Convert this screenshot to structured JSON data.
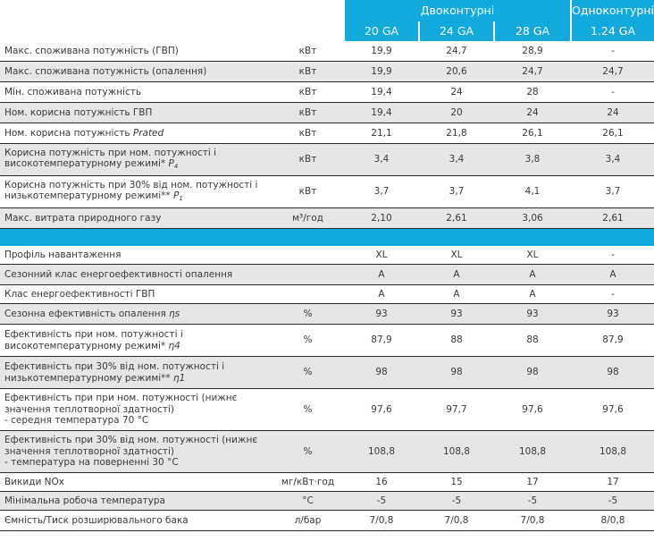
{
  "header": {
    "group_dual": "Двоконтурні",
    "group_single": "Одноконтурні",
    "models": [
      "20 GA",
      "24 GA",
      "28 GA",
      "1.24 GA"
    ]
  },
  "rows_top": [
    {
      "label": "Макс. споживана потужність (ГВП)",
      "unit": "кВт",
      "values": [
        "19,9",
        "24,7",
        "28,9",
        "-"
      ]
    },
    {
      "label": "Макс. споживана потужність (опалення)",
      "unit": "кВт",
      "values": [
        "19,9",
        "20,6",
        "24,7",
        "24,7"
      ]
    },
    {
      "label": "Мін. споживана потужність",
      "unit": "кВт",
      "values": [
        "19,4",
        "24",
        "28",
        "-"
      ]
    },
    {
      "label": "Ном. корисна потужність ГВП",
      "unit": "кВт",
      "values": [
        "19,4",
        "20",
        "24",
        "24"
      ]
    },
    {
      "label": "Ном. корисна потужність ",
      "label_italic": "Prated",
      "unit": "кВт",
      "values": [
        "21,1",
        "21,8",
        "26,1",
        "26,1"
      ]
    },
    {
      "label": "Корисна потужність при ном. потужності і\nвисокотемпературному режимі* ",
      "label_italic": "P",
      "label_sub": "4",
      "unit": "кВт",
      "values": [
        "3,4",
        "3,4",
        "3,8",
        "3,4"
      ]
    },
    {
      "label": "Корисна потужність при 30% від ном. потужності і\nнизькотемпературному режимі** ",
      "label_italic": "P",
      "label_sub": "1",
      "unit": "кВт",
      "values": [
        "3,7",
        "3,7",
        "4,1",
        "3,7"
      ]
    },
    {
      "label": "Макс. витрата природного газу",
      "unit": "м³/год",
      "values": [
        "2,10",
        "2,61",
        "3,06",
        "2,61"
      ]
    }
  ],
  "rows_bottom": [
    {
      "label": "Профіль навантаження",
      "unit": "",
      "values": [
        "XL",
        "XL",
        "XL",
        "-"
      ]
    },
    {
      "label": "Сезонний клас енергоефективності опалення",
      "unit": "",
      "values": [
        "A",
        "A",
        "A",
        "A"
      ]
    },
    {
      "label": "Клас енергоефективності ГВП",
      "unit": "",
      "values": [
        "A",
        "A",
        "A",
        "-"
      ]
    },
    {
      "label": "Сезонна ефективність опалення ",
      "label_italic": "ηs",
      "unit": "%",
      "values": [
        "93",
        "93",
        "93",
        "93"
      ]
    },
    {
      "label": "Ефективність при ном. потужності і\nвисокотемпературному режимі* ",
      "label_italic": "η4",
      "unit": "%",
      "values": [
        "87,9",
        "88",
        "88",
        "87,9"
      ]
    },
    {
      "label": "Ефективність при 30% від ном. потужності і\nнизькотемпературному режимі** ",
      "label_italic": "η1",
      "unit": "%",
      "values": [
        "98",
        "98",
        "98",
        "98"
      ]
    },
    {
      "label": "Ефективність при при ном. потужності (нижнє\nзначення теплотворної здатності)\n- середня температура 70 °C",
      "unit": "%",
      "values": [
        "97,6",
        "97,7",
        "97,6",
        "97,6"
      ]
    },
    {
      "label": "Ефективність при 30% від ном. потужності (нижнє\nзначення теплотворної здатності)\n- температура на поверненні 30 °C",
      "unit": "%",
      "values": [
        "108,8",
        "108,8",
        "108,8",
        "108,8"
      ]
    },
    {
      "label": "Викиди NOx",
      "unit": "мг/кВт·год",
      "values": [
        "16",
        "15",
        "17",
        "17"
      ]
    },
    {
      "label": "Мінімальна робоча температура",
      "unit": "°C",
      "values": [
        "-5",
        "-5",
        "-5",
        "-5"
      ]
    },
    {
      "label": "Ємність/Тиск розширювального бака",
      "unit": "л/бар",
      "values": [
        "7/0,8",
        "7/0,8",
        "7/0,8",
        "8/0,8"
      ]
    }
  ],
  "colors": {
    "accent": "#12a9dd",
    "stripe": "#e6e6e6",
    "text": "#3a3a3a"
  }
}
